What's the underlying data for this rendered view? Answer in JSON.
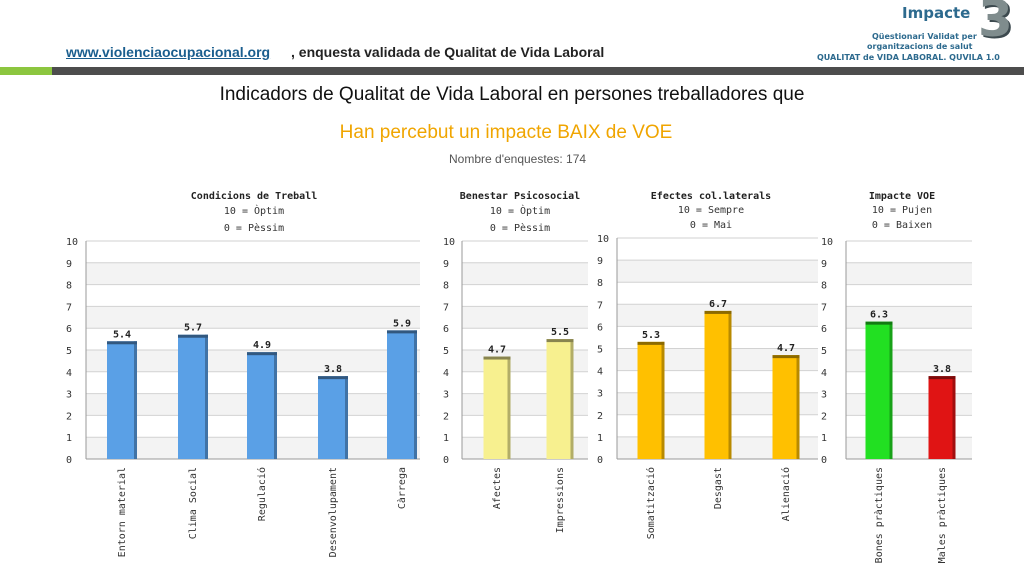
{
  "header": {
    "link_text": "www.violenciaocupacional.org",
    "rest_text": " , enquesta validada de Qualitat de Vida Laboral"
  },
  "logo": {
    "title": "Impacte",
    "number": "3",
    "line1": "Qüestionari Validat per",
    "line2": "organitzacions de salut",
    "line3": "QUALITAT de VIDA LABORAL. QUVILA 1.0"
  },
  "main_title": "Indicadors de Qualitat de Vida Laboral en persones treballadores que",
  "sub_title": "Han percebut un impacte BAIX de VOE",
  "survey_count": "Nombre d'enquestes: 174",
  "chart_data": [
    {
      "type": "bar",
      "title": "Condicions de Treball",
      "legend_top": "10 = Òptim",
      "legend_bottom": "0 = Pèssim",
      "categories": [
        "Entorn material",
        "Clima Social",
        "Regulació",
        "Desenvolupament",
        "Càrrega"
      ],
      "values": [
        5.4,
        5.7,
        4.9,
        3.8,
        5.9
      ],
      "labels": [
        "5.4",
        "5.7",
        "4.9",
        "3.8",
        "5.9"
      ],
      "colors": [
        "#5aa0e6",
        "#5aa0e6",
        "#5aa0e6",
        "#5aa0e6",
        "#5aa0e6"
      ],
      "ylim": [
        0,
        10
      ],
      "yticks": [
        "0",
        "1",
        "2",
        "3",
        "4",
        "5",
        "6",
        "7",
        "8",
        "9",
        "10"
      ]
    },
    {
      "type": "bar",
      "title": "Benestar Psicosocial",
      "legend_top": "10 = Òptim",
      "legend_bottom": "0 = Pèssim",
      "categories": [
        "Afectes",
        "Impressions"
      ],
      "values": [
        4.7,
        5.5
      ],
      "labels": [
        "4.7",
        "5.5"
      ],
      "colors": [
        "#f7f08f",
        "#f7f08f"
      ],
      "ylim": [
        0,
        10
      ],
      "yticks": [
        "0",
        "1",
        "2",
        "3",
        "4",
        "5",
        "6",
        "7",
        "8",
        "9",
        "10"
      ]
    },
    {
      "type": "bar",
      "title": "Efectes col.laterals",
      "legend_top": "10 = Sempre",
      "legend_bottom": "0 = Mai",
      "categories": [
        "Somatització",
        "Desgast",
        "Alienació"
      ],
      "values": [
        5.3,
        6.7,
        4.7
      ],
      "labels": [
        "5.3",
        "6.7",
        "4.7"
      ],
      "colors": [
        "#ffc000",
        "#ffc000",
        "#ffc000"
      ],
      "ylim": [
        0,
        10
      ],
      "yticks": [
        "0",
        "1",
        "2",
        "3",
        "4",
        "5",
        "6",
        "7",
        "8",
        "9",
        "10"
      ]
    },
    {
      "type": "bar",
      "title": "Impacte VOE",
      "legend_top": "10 = Pujen",
      "legend_bottom": "0 = Baixen",
      "categories": [
        "Bones pràctiques",
        "Males pràctiques"
      ],
      "values": [
        6.3,
        3.8
      ],
      "labels": [
        "6.3",
        "3.8"
      ],
      "colors": [
        "#22e022",
        "#e01414"
      ],
      "ylim": [
        0,
        10
      ],
      "yticks": [
        "0",
        "1",
        "2",
        "3",
        "4",
        "5",
        "6",
        "7",
        "8",
        "9",
        "10"
      ]
    }
  ]
}
